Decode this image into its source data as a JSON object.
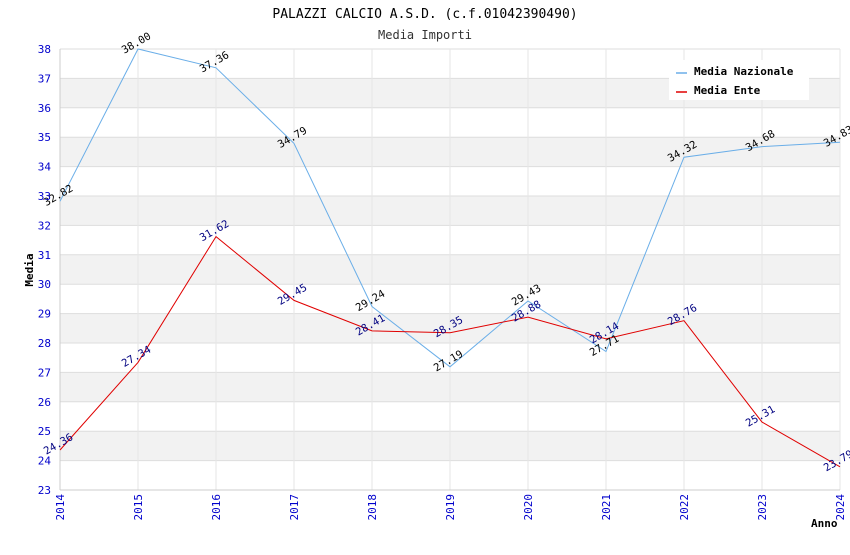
{
  "chart_data": {
    "type": "line",
    "title": "PALAZZI CALCIO A.S.D. (c.f.01042390490)",
    "subtitle": "Media Importi",
    "xlabel": "Anno",
    "ylabel": "Media",
    "categories": [
      "2014",
      "2015",
      "2016",
      "2017",
      "2018",
      "2019",
      "2020",
      "2021",
      "2022",
      "2023",
      "2024"
    ],
    "ylim": [
      23,
      38
    ],
    "yticks": [
      "23",
      "24",
      "25",
      "26",
      "27",
      "28",
      "29",
      "30",
      "31",
      "32",
      "33",
      "34",
      "35",
      "36",
      "37",
      "38"
    ],
    "grid": true,
    "legend_position": "top-right",
    "series": [
      {
        "name": "Media Nazionale",
        "color": "#6aaee8",
        "values": [
          32.82,
          38.0,
          37.36,
          34.79,
          29.24,
          27.19,
          29.43,
          27.71,
          34.32,
          34.68,
          34.83
        ],
        "labels": [
          "32.82",
          "38.00",
          "37.36",
          "34.79",
          "29.24",
          "27.19",
          "29.43",
          "27.71",
          "34.32",
          "34.68",
          "34.83"
        ]
      },
      {
        "name": "Media Ente",
        "color": "#e00000",
        "values": [
          24.36,
          27.34,
          31.62,
          29.45,
          28.41,
          28.35,
          28.88,
          28.14,
          28.76,
          25.31,
          23.79
        ],
        "labels": [
          "24.36",
          "27.34",
          "31.62",
          "29.45",
          "28.41",
          "28.35",
          "28.88",
          "28.14",
          "28.76",
          "25.31",
          "23.79"
        ]
      }
    ]
  }
}
